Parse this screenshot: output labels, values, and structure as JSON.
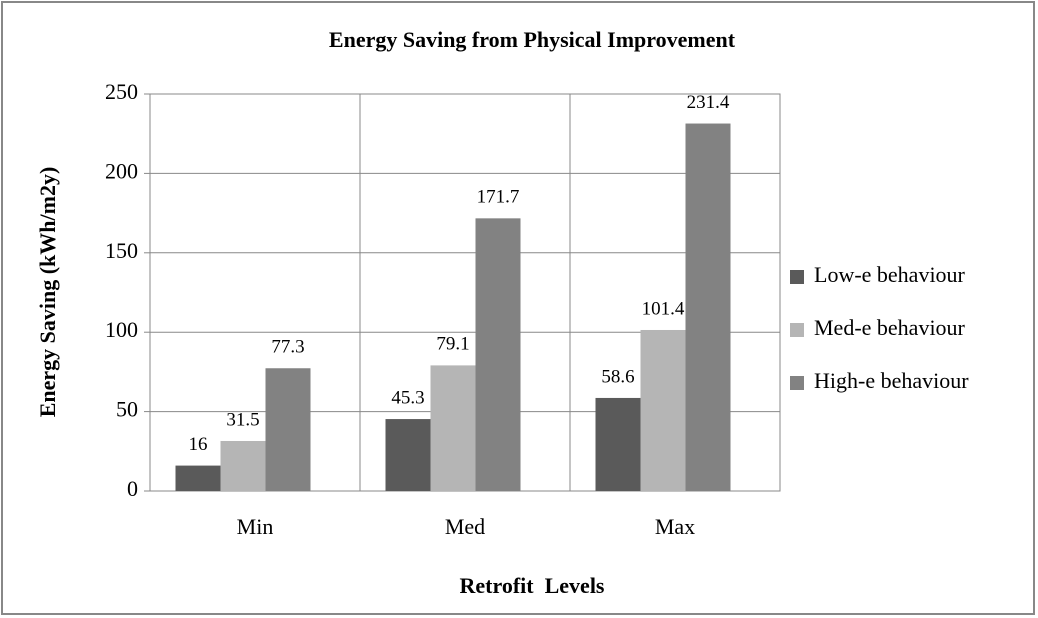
{
  "chart_data": {
    "type": "bar",
    "title": "Energy Saving from Physical Improvement",
    "x_label": "Retrofit  Levels",
    "y_label": "Energy Saving (kWh/m2y)",
    "categories": [
      "Min",
      "Med",
      "Max"
    ],
    "series": [
      {
        "name": "Low-e behaviour",
        "color": "#5a5a5a",
        "values": [
          16,
          45.3,
          58.6
        ]
      },
      {
        "name": "Med-e behaviour",
        "color": "#b5b5b5",
        "values": [
          31.5,
          79.1,
          101.4
        ]
      },
      {
        "name": "High-e behaviour",
        "color": "#828282",
        "values": [
          77.3,
          171.7,
          231.4
        ]
      }
    ],
    "ylim": [
      0,
      250
    ],
    "yticks": [
      0,
      50,
      100,
      150,
      200,
      250
    ],
    "grid": true,
    "legend": "right"
  }
}
